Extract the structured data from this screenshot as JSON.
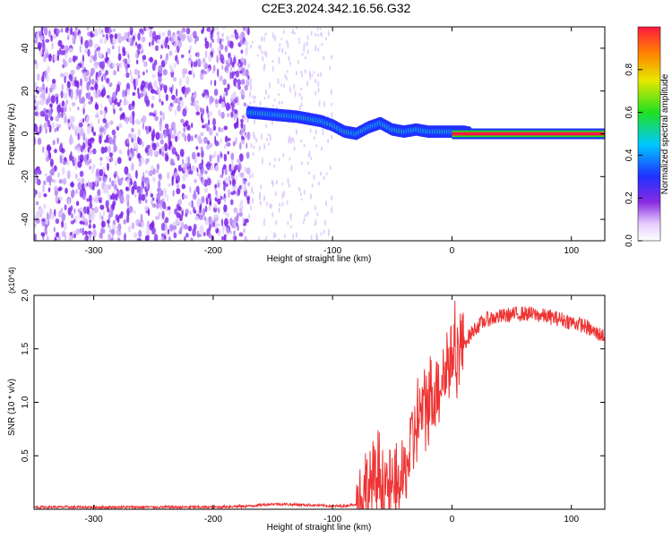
{
  "title": "C2E3.2024.342.16.56.G32",
  "chart_data": [
    {
      "type": "heatmap",
      "xlabel": "Height of straight line (km)",
      "ylabel": "Frequency (Hz)",
      "xlim": [
        -350,
        128
      ],
      "ylim": [
        -50,
        50
      ],
      "xticks": [
        -300,
        -200,
        -100,
        0,
        100
      ],
      "yticks": [
        -40,
        -20,
        0,
        20,
        40
      ],
      "colorbar": {
        "label": "Normalized spectral amplitude",
        "range": [
          0,
          1
        ],
        "ticks": [
          0.0,
          0.2,
          0.4,
          0.6,
          0.8
        ]
      },
      "ridge_description": "dominant near-zero frequency ridge from about -170 km (≈10 Hz) descending to ≈0 Hz beyond 0 km",
      "ridge": {
        "x": [
          -170,
          -150,
          -130,
          -110,
          -100,
          -90,
          -80,
          -70,
          -60,
          -50,
          -40,
          -30,
          -20,
          -10,
          0,
          10,
          20,
          50,
          100,
          128
        ],
        "y": [
          10,
          9,
          8,
          6,
          4,
          1,
          0,
          3,
          5,
          2,
          1,
          2,
          1,
          1,
          1,
          1,
          0,
          0,
          0,
          0
        ]
      },
      "noise_region_x": [
        -350,
        -170
      ],
      "grid": false
    },
    {
      "type": "line",
      "xlabel": "Height of straight line (km)",
      "ylabel": "SNR (10 * v/v)",
      "y_multiplier": "(x10^4)",
      "xlim": [
        -350,
        128
      ],
      "ylim": [
        0,
        2.0
      ],
      "xticks": [
        -300,
        -200,
        -100,
        0,
        100
      ],
      "yticks": [
        0.5,
        1.0,
        1.5,
        2.0
      ],
      "series": [
        {
          "color": "#ee3333",
          "x": [
            -350,
            -300,
            -250,
            -200,
            -170,
            -150,
            -120,
            -100,
            -90,
            -80,
            -70,
            -60,
            -50,
            -40,
            -30,
            -20,
            -10,
            0,
            10,
            20,
            30,
            40,
            50,
            60,
            70,
            80,
            90,
            100,
            110,
            120,
            128
          ],
          "values": [
            0.02,
            0.02,
            0.02,
            0.02,
            0.03,
            0.05,
            0.04,
            0.03,
            0.03,
            0.05,
            0.2,
            0.3,
            0.15,
            0.3,
            0.8,
            1.0,
            1.2,
            1.45,
            1.55,
            1.7,
            1.78,
            1.8,
            1.82,
            1.83,
            1.82,
            1.8,
            1.78,
            1.75,
            1.72,
            1.65,
            1.62
          ]
        }
      ],
      "grid": false
    }
  ]
}
